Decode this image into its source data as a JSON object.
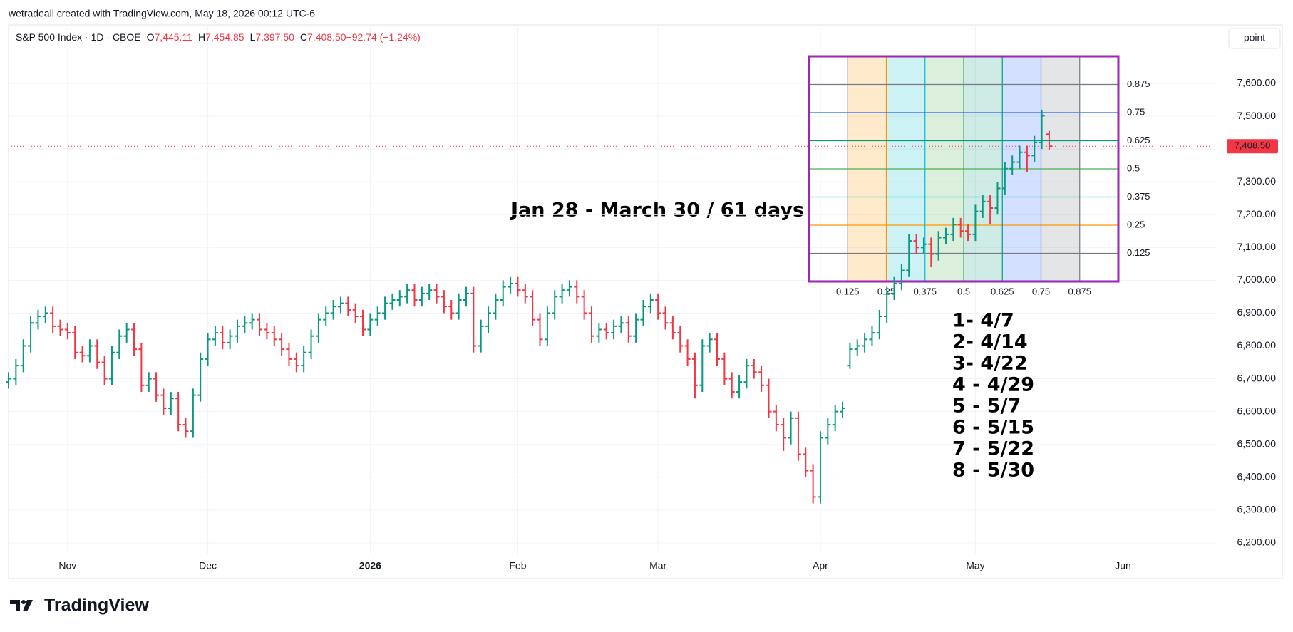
{
  "attribution": "wetradeall created with TradingView.com, May 18, 2026 00:12 UTC-6",
  "brand": "TradingView",
  "button": "point",
  "chart_data": {
    "type": "ohlc",
    "symbol": "S&P 500 Index · 1D · CBOE",
    "legend_values": [
      {
        "key": "O",
        "text": "7,445.11"
      },
      {
        "key": "H",
        "text": "7,454.85"
      },
      {
        "key": "L",
        "text": "7,397.50"
      },
      {
        "key": "C",
        "text": "7,408.50"
      },
      {
        "key": "",
        "text": "−92.74 (−1.24%)"
      }
    ],
    "up_color": "#089981",
    "down_color": "#f23645",
    "grid": true,
    "ylim": [
      6165,
      7778
    ],
    "xlim": [
      0,
      163.7
    ],
    "yticks": [
      {
        "value": 6200,
        "label": "6,200.00"
      },
      {
        "value": 6300,
        "label": "6,300.00"
      },
      {
        "value": 6400,
        "label": "6,400.00"
      },
      {
        "value": 6500,
        "label": "6,500.00"
      },
      {
        "value": 6600,
        "label": "6,600.00"
      },
      {
        "value": 6700,
        "label": "6,700.00"
      },
      {
        "value": 6800,
        "label": "6,800.00"
      },
      {
        "value": 6900,
        "label": "6,900.00"
      },
      {
        "value": 7000,
        "label": "7,000.00"
      },
      {
        "value": 7100,
        "label": "7,100.00"
      },
      {
        "value": 7200,
        "label": "7,200.00"
      },
      {
        "value": 7300,
        "label": "7,300.00"
      },
      {
        "value": 7400,
        "label": "7,400.00"
      },
      {
        "value": 7500,
        "label": "7,500.00"
      },
      {
        "value": 7600,
        "label": "7,600.00"
      }
    ],
    "xticks": [
      {
        "value": 8,
        "label": "Nov"
      },
      {
        "value": 27,
        "label": "Dec"
      },
      {
        "value": 49,
        "label": "2026",
        "bold": true
      },
      {
        "value": 69,
        "label": "Feb"
      },
      {
        "value": 88,
        "label": "Mar"
      },
      {
        "value": 110,
        "label": "Apr"
      },
      {
        "value": 131,
        "label": "May"
      },
      {
        "value": 151,
        "label": "Jun"
      }
    ],
    "last_price": {
      "value": 7408.5,
      "label": "7,408.50"
    },
    "ohlc": [
      [
        6690,
        6720,
        6670,
        6700
      ],
      [
        6700,
        6760,
        6680,
        6740
      ],
      [
        6740,
        6820,
        6720,
        6800
      ],
      [
        6800,
        6890,
        6780,
        6870
      ],
      [
        6870,
        6910,
        6850,
        6890
      ],
      [
        6890,
        6920,
        6870,
        6900
      ],
      [
        6900,
        6920,
        6840,
        6860
      ],
      [
        6860,
        6880,
        6830,
        6850
      ],
      [
        6850,
        6870,
        6820,
        6840
      ],
      [
        6840,
        6860,
        6760,
        6780
      ],
      [
        6780,
        6800,
        6750,
        6770
      ],
      [
        6770,
        6820,
        6750,
        6800
      ],
      [
        6800,
        6820,
        6730,
        6750
      ],
      [
        6750,
        6770,
        6680,
        6700
      ],
      [
        6700,
        6800,
        6680,
        6780
      ],
      [
        6780,
        6850,
        6760,
        6830
      ],
      [
        6830,
        6870,
        6810,
        6850
      ],
      [
        6850,
        6870,
        6770,
        6790
      ],
      [
        6790,
        6810,
        6660,
        6680
      ],
      [
        6680,
        6720,
        6660,
        6700
      ],
      [
        6700,
        6720,
        6630,
        6650
      ],
      [
        6650,
        6670,
        6590,
        6610
      ],
      [
        6610,
        6660,
        6590,
        6640
      ],
      [
        6640,
        6660,
        6540,
        6560
      ],
      [
        6560,
        6580,
        6520,
        6540
      ],
      [
        6540,
        6670,
        6520,
        6650
      ],
      [
        6650,
        6780,
        6630,
        6760
      ],
      [
        6760,
        6840,
        6740,
        6820
      ],
      [
        6820,
        6860,
        6800,
        6840
      ],
      [
        6840,
        6860,
        6790,
        6810
      ],
      [
        6810,
        6850,
        6790,
        6830
      ],
      [
        6830,
        6880,
        6810,
        6860
      ],
      [
        6860,
        6890,
        6840,
        6870
      ],
      [
        6870,
        6900,
        6850,
        6880
      ],
      [
        6880,
        6900,
        6830,
        6850
      ],
      [
        6850,
        6870,
        6820,
        6840
      ],
      [
        6840,
        6860,
        6800,
        6820
      ],
      [
        6820,
        6840,
        6770,
        6790
      ],
      [
        6790,
        6810,
        6740,
        6760
      ],
      [
        6760,
        6780,
        6720,
        6740
      ],
      [
        6740,
        6800,
        6720,
        6780
      ],
      [
        6780,
        6850,
        6760,
        6830
      ],
      [
        6830,
        6900,
        6810,
        6880
      ],
      [
        6880,
        6920,
        6860,
        6900
      ],
      [
        6900,
        6940,
        6880,
        6920
      ],
      [
        6920,
        6950,
        6900,
        6930
      ],
      [
        6930,
        6950,
        6890,
        6910
      ],
      [
        6910,
        6930,
        6870,
        6890
      ],
      [
        6890,
        6910,
        6830,
        6850
      ],
      [
        6850,
        6900,
        6830,
        6880
      ],
      [
        6880,
        6920,
        6860,
        6900
      ],
      [
        6900,
        6950,
        6880,
        6930
      ],
      [
        6930,
        6960,
        6910,
        6940
      ],
      [
        6940,
        6970,
        6920,
        6950
      ],
      [
        6950,
        6990,
        6930,
        6970
      ],
      [
        6970,
        6990,
        6920,
        6940
      ],
      [
        6940,
        6980,
        6920,
        6960
      ],
      [
        6960,
        6990,
        6940,
        6970
      ],
      [
        6970,
        6990,
        6930,
        6950
      ],
      [
        6950,
        6970,
        6900,
        6920
      ],
      [
        6920,
        6940,
        6880,
        6900
      ],
      [
        6900,
        6960,
        6880,
        6940
      ],
      [
        6940,
        6980,
        6920,
        6960
      ],
      [
        6960,
        6980,
        6780,
        6800
      ],
      [
        6800,
        6880,
        6780,
        6860
      ],
      [
        6860,
        6920,
        6840,
        6900
      ],
      [
        6900,
        6960,
        6880,
        6940
      ],
      [
        6940,
        7000,
        6920,
        6980
      ],
      [
        6980,
        7010,
        6960,
        6990
      ],
      [
        6990,
        7010,
        6950,
        6970
      ],
      [
        6970,
        6990,
        6930,
        6950
      ],
      [
        6950,
        6970,
        6860,
        6880
      ],
      [
        6880,
        6900,
        6800,
        6820
      ],
      [
        6820,
        6920,
        6800,
        6900
      ],
      [
        6900,
        6970,
        6880,
        6950
      ],
      [
        6950,
        6990,
        6930,
        6970
      ],
      [
        6970,
        7000,
        6950,
        6980
      ],
      [
        6980,
        7000,
        6930,
        6950
      ],
      [
        6950,
        6970,
        6880,
        6900
      ],
      [
        6900,
        6920,
        6810,
        6830
      ],
      [
        6830,
        6870,
        6810,
        6850
      ],
      [
        6850,
        6870,
        6820,
        6840
      ],
      [
        6840,
        6880,
        6820,
        6860
      ],
      [
        6860,
        6890,
        6840,
        6870
      ],
      [
        6870,
        6890,
        6810,
        6830
      ],
      [
        6830,
        6900,
        6810,
        6880
      ],
      [
        6880,
        6940,
        6860,
        6920
      ],
      [
        6920,
        6960,
        6900,
        6940
      ],
      [
        6940,
        6960,
        6880,
        6900
      ],
      [
        6900,
        6920,
        6850,
        6870
      ],
      [
        6870,
        6890,
        6820,
        6840
      ],
      [
        6840,
        6860,
        6780,
        6800
      ],
      [
        6800,
        6820,
        6740,
        6760
      ],
      [
        6760,
        6780,
        6640,
        6680
      ],
      [
        6680,
        6820,
        6660,
        6800
      ],
      [
        6800,
        6840,
        6780,
        6820
      ],
      [
        6820,
        6840,
        6740,
        6760
      ],
      [
        6760,
        6780,
        6680,
        6700
      ],
      [
        6700,
        6720,
        6640,
        6660
      ],
      [
        6660,
        6710,
        6640,
        6690
      ],
      [
        6690,
        6760,
        6670,
        6740
      ],
      [
        6740,
        6760,
        6700,
        6720
      ],
      [
        6720,
        6740,
        6660,
        6680
      ],
      [
        6680,
        6700,
        6580,
        6600
      ],
      [
        6600,
        6620,
        6540,
        6560
      ],
      [
        6560,
        6580,
        6480,
        6520
      ],
      [
        6520,
        6600,
        6500,
        6580
      ],
      [
        6580,
        6600,
        6450,
        6470
      ],
      [
        6470,
        6490,
        6400,
        6420
      ],
      [
        6420,
        6440,
        6320,
        6340
      ],
      [
        6340,
        6540,
        6320,
        6520
      ],
      [
        6520,
        6580,
        6500,
        6560
      ],
      [
        6560,
        6620,
        6540,
        6600
      ],
      [
        6600,
        6630,
        6580,
        6610
      ],
      [
        6740,
        6810,
        6730,
        6790
      ],
      [
        6790,
        6820,
        6770,
        6800
      ],
      [
        6800,
        6840,
        6780,
        6820
      ],
      [
        6820,
        6860,
        6800,
        6840
      ],
      [
        6840,
        6910,
        6820,
        6890
      ],
      [
        6890,
        6980,
        6870,
        6960
      ],
      [
        6960,
        7010,
        6940,
        6990
      ],
      [
        6990,
        7050,
        6970,
        7030
      ],
      [
        7030,
        7140,
        7010,
        7120
      ],
      [
        7120,
        7140,
        7080,
        7100
      ],
      [
        7100,
        7130,
        7080,
        7110
      ],
      [
        7110,
        7130,
        7040,
        7080
      ],
      [
        7080,
        7150,
        7060,
        7130
      ],
      [
        7130,
        7160,
        7110,
        7140
      ],
      [
        7140,
        7190,
        7120,
        7170
      ],
      [
        7170,
        7190,
        7130,
        7150
      ],
      [
        7150,
        7170,
        7120,
        7140
      ],
      [
        7140,
        7230,
        7120,
        7210
      ],
      [
        7210,
        7260,
        7190,
        7240
      ],
      [
        7240,
        7260,
        7170,
        7220
      ],
      [
        7220,
        7300,
        7200,
        7280
      ],
      [
        7280,
        7360,
        7260,
        7340
      ],
      [
        7340,
        7380,
        7320,
        7360
      ],
      [
        7360,
        7410,
        7340,
        7390
      ],
      [
        7390,
        7410,
        7330,
        7380
      ],
      [
        7380,
        7440,
        7360,
        7420
      ],
      [
        7420,
        7520,
        7400,
        7501.24
      ],
      [
        7445.11,
        7454.85,
        7397.5,
        7408.5
      ]
    ],
    "fib_border_color": "#9c27b0",
    "fib_levels": [
      {
        "value": 0.125,
        "color": "#787b86"
      },
      {
        "value": 0.25,
        "color": "#ff9800"
      },
      {
        "value": 0.375,
        "color": "#00bcd4"
      },
      {
        "value": 0.5,
        "color": "#4caf50"
      },
      {
        "value": 0.625,
        "color": "#089981"
      },
      {
        "value": 0.75,
        "color": "#2962ff"
      },
      {
        "value": 0.875,
        "color": "#787b86"
      }
    ],
    "annotation": "Jan 28 - March 30 / 61 days",
    "date_list": [
      "1- 4/7",
      "2- 4/14",
      "3- 4/22",
      "4 - 4/29",
      "5 - 5/7",
      "6 - 5/15",
      "7 - 5/22",
      "8 - 5/30"
    ]
  }
}
